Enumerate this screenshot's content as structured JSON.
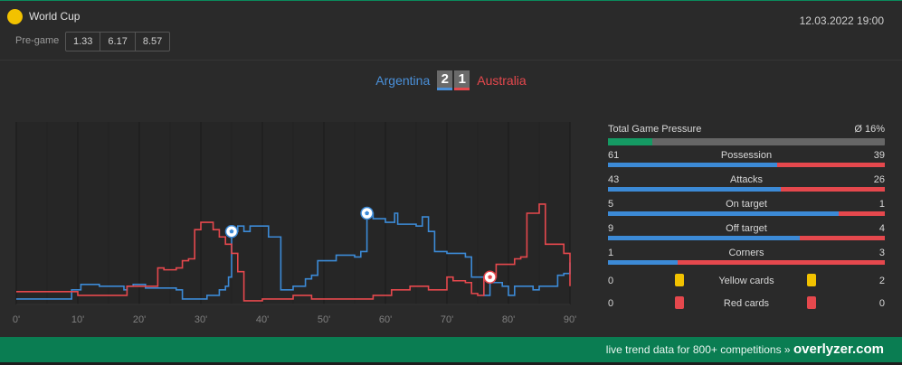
{
  "header": {
    "competition": "World Cup",
    "datetime": "12.03.2022 19:00",
    "pregame_label": "Pre-game",
    "odds": [
      "1.33",
      "6.17",
      "8.57"
    ]
  },
  "match": {
    "home_team": "Argentina",
    "away_team": "Australia",
    "home_score": "2",
    "away_score": "1"
  },
  "chart_data": {
    "type": "line",
    "x_ticks": [
      "0'",
      "10'",
      "20'",
      "30'",
      "40'",
      "50'",
      "60'",
      "70'",
      "80'",
      "90'"
    ],
    "xlim": [
      0,
      90
    ],
    "ylim": [
      0,
      100
    ],
    "grid": true,
    "series": [
      {
        "name": "Argentina",
        "color": "#3c8ad6",
        "points": [
          [
            0,
            3
          ],
          [
            8,
            3
          ],
          [
            9,
            8
          ],
          [
            10,
            8
          ],
          [
            10.5,
            11
          ],
          [
            13,
            11
          ],
          [
            13.5,
            10
          ],
          [
            17,
            10
          ],
          [
            17.5,
            8
          ],
          [
            18,
            10
          ],
          [
            19,
            11
          ],
          [
            20,
            11
          ],
          [
            21,
            9
          ],
          [
            24,
            9
          ],
          [
            26,
            8
          ],
          [
            27,
            3
          ],
          [
            29,
            3
          ],
          [
            31,
            5
          ],
          [
            32,
            5
          ],
          [
            33,
            8
          ],
          [
            34,
            10
          ],
          [
            34.5,
            15
          ],
          [
            35,
            40
          ],
          [
            36,
            43
          ],
          [
            37,
            40
          ],
          [
            38,
            43
          ],
          [
            40,
            43
          ],
          [
            41,
            37
          ],
          [
            42,
            37
          ],
          [
            43,
            8
          ],
          [
            44,
            8
          ],
          [
            45,
            10
          ],
          [
            46,
            10
          ],
          [
            47,
            14
          ],
          [
            48,
            16
          ],
          [
            49,
            24
          ],
          [
            51,
            24
          ],
          [
            52,
            27
          ],
          [
            54,
            27
          ],
          [
            55,
            26
          ],
          [
            56,
            29
          ],
          [
            57,
            50
          ],
          [
            58,
            47
          ],
          [
            60,
            45
          ],
          [
            61,
            45
          ],
          [
            61.5,
            50
          ],
          [
            62,
            44
          ],
          [
            64,
            44
          ],
          [
            65,
            43
          ],
          [
            66,
            48
          ],
          [
            67,
            40
          ],
          [
            68,
            29
          ],
          [
            69,
            29
          ],
          [
            70,
            28
          ],
          [
            72,
            28
          ],
          [
            73,
            26
          ],
          [
            74,
            15
          ],
          [
            75,
            15
          ],
          [
            76,
            5
          ],
          [
            77,
            12
          ],
          [
            78,
            12
          ],
          [
            79,
            10
          ],
          [
            80,
            5
          ],
          [
            81,
            10
          ],
          [
            82,
            10
          ],
          [
            84,
            8
          ],
          [
            85,
            10
          ],
          [
            86,
            10
          ],
          [
            87,
            10
          ],
          [
            88,
            16
          ],
          [
            89,
            17
          ],
          [
            90,
            23
          ]
        ]
      },
      {
        "name": "Australia",
        "color": "#e5484d",
        "points": [
          [
            0,
            7
          ],
          [
            9,
            7
          ],
          [
            10,
            5
          ],
          [
            17,
            5
          ],
          [
            18,
            10
          ],
          [
            22,
            10
          ],
          [
            23,
            20
          ],
          [
            24,
            19
          ],
          [
            26,
            20
          ],
          [
            27,
            24
          ],
          [
            28,
            25
          ],
          [
            29,
            41
          ],
          [
            30,
            45
          ],
          [
            31,
            45
          ],
          [
            32,
            41
          ],
          [
            33,
            37
          ],
          [
            34,
            33
          ],
          [
            35,
            28
          ],
          [
            36,
            18
          ],
          [
            37,
            2
          ],
          [
            39,
            2
          ],
          [
            40,
            3
          ],
          [
            44,
            3
          ],
          [
            45,
            5
          ],
          [
            47,
            5
          ],
          [
            48,
            3
          ],
          [
            57,
            3
          ],
          [
            58,
            5
          ],
          [
            60,
            5
          ],
          [
            61,
            8
          ],
          [
            63,
            8
          ],
          [
            64,
            10
          ],
          [
            66,
            10
          ],
          [
            67,
            8
          ],
          [
            69,
            8
          ],
          [
            70,
            15
          ],
          [
            71,
            13
          ],
          [
            72,
            13
          ],
          [
            73,
            12
          ],
          [
            74,
            6
          ],
          [
            75,
            5
          ],
          [
            76,
            15
          ],
          [
            77,
            15
          ],
          [
            78,
            22
          ],
          [
            80,
            22
          ],
          [
            81,
            25
          ],
          [
            82,
            26
          ],
          [
            83,
            50
          ],
          [
            84,
            50
          ],
          [
            85,
            55
          ],
          [
            86,
            33
          ],
          [
            88,
            33
          ],
          [
            89,
            28
          ],
          [
            90,
            10
          ]
        ]
      }
    ],
    "events": [
      {
        "team": "Argentina",
        "minute": 35,
        "type": "goal"
      },
      {
        "team": "Argentina",
        "minute": 57,
        "type": "goal"
      },
      {
        "team": "Australia",
        "minute": 77,
        "type": "goal"
      }
    ]
  },
  "stats": {
    "pressure": {
      "label": "Total Game Pressure",
      "value": "Ø 16%",
      "fraction": 0.16
    },
    "rows": [
      {
        "label": "Possession",
        "home": "61",
        "away": "39"
      },
      {
        "label": "Attacks",
        "home": "43",
        "away": "26"
      },
      {
        "label": "On target",
        "home": "5",
        "away": "1"
      },
      {
        "label": "Off target",
        "home": "9",
        "away": "4"
      },
      {
        "label": "Corners",
        "home": "1",
        "away": "3"
      }
    ],
    "cards": [
      {
        "label": "Yellow cards",
        "home": "0",
        "away": "2",
        "color": "yellow"
      },
      {
        "label": "Red cards",
        "home": "0",
        "away": "0",
        "color": "red"
      }
    ]
  },
  "footer": {
    "text": "live trend data for 800+ competitions »",
    "brand": "overlyzer.com"
  }
}
